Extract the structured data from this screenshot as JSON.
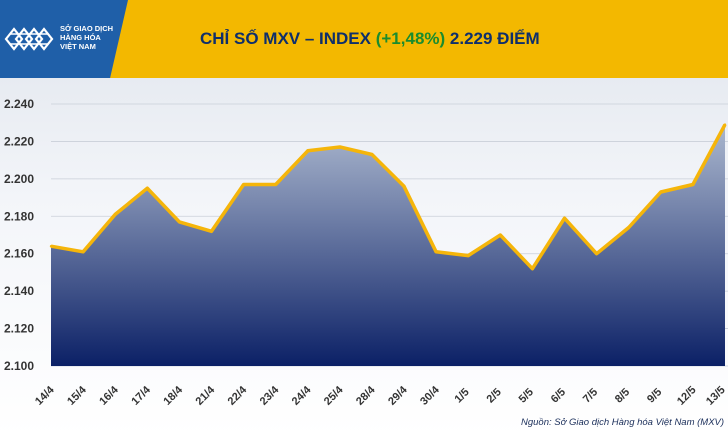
{
  "header": {
    "logo_lines": [
      "SỞ GIAO DỊCH",
      "HÀNG HÓA",
      "VIỆT NAM"
    ],
    "title_prefix": "CHỈ SỐ MXV – INDEX",
    "title_change": "(+1,48%)",
    "title_value": "2.229 ĐIỂM"
  },
  "colors": {
    "header_bg": "#f3b800",
    "logo_bg": "#1f5fa8",
    "title_text": "#0f2f6b",
    "change_text": "#1a8c2e",
    "line": "#f5b50a",
    "area_top": "#a7b4cc",
    "area_bottom": "#0b2066"
  },
  "chart_data": {
    "type": "area",
    "title": "CHỈ SỐ MXV – INDEX (+1,48%) 2.229 ĐIỂM",
    "xlabel": "",
    "ylabel": "",
    "ylim": [
      2100,
      2240
    ],
    "yticks": [
      2100,
      2120,
      2140,
      2160,
      2180,
      2200,
      2220,
      2240
    ],
    "ytick_labels": [
      "2.100",
      "2.120",
      "2.140",
      "2.160",
      "2.180",
      "2.200",
      "2.220",
      "2.240"
    ],
    "grid": true,
    "categories": [
      "14/4",
      "15/4",
      "16/4",
      "17/4",
      "18/4",
      "21/4",
      "22/4",
      "23/4",
      "24/4",
      "25/4",
      "28/4",
      "29/4",
      "30/4",
      "1/5",
      "2/5",
      "5/5",
      "6/5",
      "7/5",
      "8/5",
      "9/5",
      "12/5",
      "13/5"
    ],
    "series": [
      {
        "values": [
          2164,
          2161,
          2181,
          2195,
          2177,
          2172,
          2197,
          2197,
          2215,
          2217,
          2213,
          2196,
          2161,
          2159,
          2170,
          2152,
          2179,
          2160,
          2174,
          2193,
          2197,
          2229
        ]
      }
    ]
  },
  "source": "Nguồn: Sở Giao dịch Hàng hóa Việt Nam (MXV)"
}
